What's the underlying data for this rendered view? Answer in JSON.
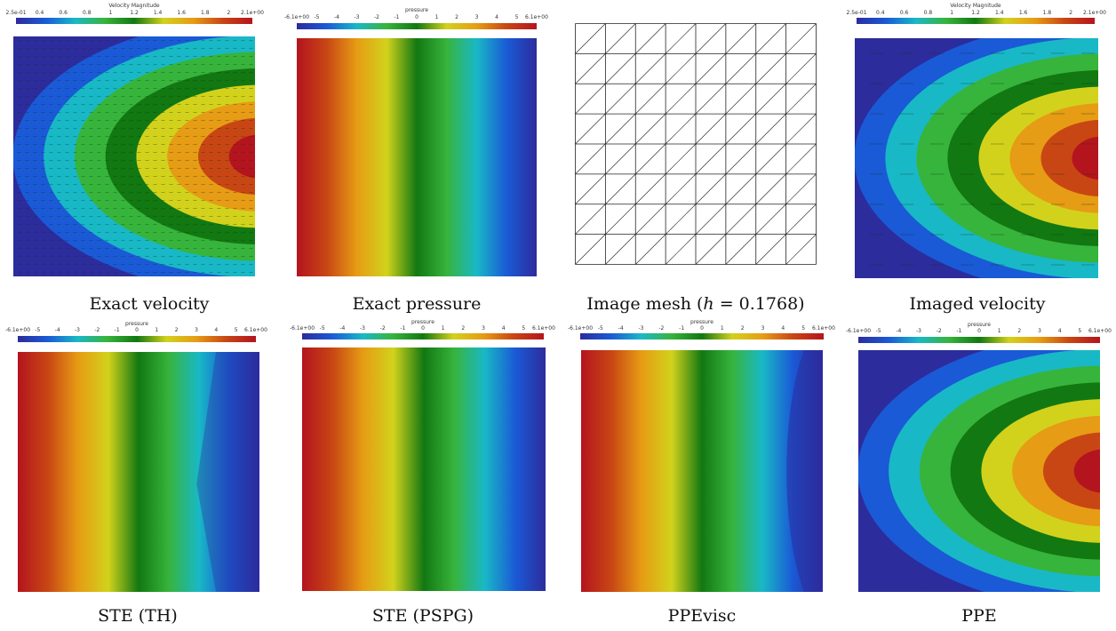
{
  "colormap": [
    "#2c2c9c",
    "#1a5ad6",
    "#19b8c6",
    "#37b43c",
    "#127812",
    "#d2d21c",
    "#e69c14",
    "#c84614",
    "#b4141e"
  ],
  "panels": [
    {
      "id": "exact-velocity",
      "caption": "Exact velocity",
      "colorbar": {
        "title": "Velocity Magnitude",
        "ticks": [
          "2.5e-01",
          "0.4",
          "0.6",
          "0.8",
          "1",
          "1.2",
          "1.4",
          "1.6",
          "1.8",
          "2",
          "2.1e+00"
        ]
      },
      "field": {
        "pattern": "parabolic",
        "vectors": "dense"
      }
    },
    {
      "id": "exact-pressure",
      "caption": "Exact pressure",
      "colorbar": {
        "title": "pressure",
        "ticks": [
          "-6.1e+00",
          "-5",
          "-4",
          "-3",
          "-2",
          "-1",
          "0",
          "1",
          "2",
          "3",
          "4",
          "5",
          "6.1e+00"
        ]
      },
      "field": {
        "pattern": "linear"
      }
    },
    {
      "id": "image-mesh",
      "caption_prefix": "Image mesh (",
      "caption_math": "h",
      "caption_suffix": " = 0.1768)",
      "mesh": {
        "divisions": 8
      }
    },
    {
      "id": "imaged-velocity",
      "caption": "Imaged velocity",
      "colorbar": {
        "title": "Velocity Magnitude",
        "ticks": [
          "2.5e-01",
          "0.4",
          "0.6",
          "0.8",
          "1",
          "1.2",
          "1.4",
          "1.6",
          "1.8",
          "2",
          "2.1e+00"
        ]
      },
      "field": {
        "pattern": "parabolic",
        "vectors": "sparse"
      }
    },
    {
      "id": "ste-th",
      "caption": "STE (TH)",
      "colorbar": {
        "title": "pressure",
        "ticks": [
          "-6.1e+00",
          "-5",
          "-4",
          "-3",
          "-2",
          "-1",
          "0",
          "1",
          "2",
          "3",
          "4",
          "5",
          "6.1e+00"
        ]
      },
      "field": {
        "pattern": "linear-kinked"
      }
    },
    {
      "id": "ste-pspg",
      "caption": "STE (PSPG)",
      "colorbar": {
        "title": "pressure",
        "ticks": [
          "-6.1e+00",
          "-5",
          "-4",
          "-3",
          "-2",
          "-1",
          "0",
          "1",
          "2",
          "3",
          "4",
          "5",
          "6.1e+00"
        ]
      },
      "field": {
        "pattern": "linear"
      }
    },
    {
      "id": "ppevisc",
      "caption": "PPEvisc",
      "colorbar": {
        "title": "pressure",
        "ticks": [
          "-6.1e+00",
          "-5",
          "-4",
          "-3",
          "-2",
          "-1",
          "0",
          "1",
          "2",
          "3",
          "4",
          "5",
          "6.1e+00"
        ]
      },
      "field": {
        "pattern": "linear-curved"
      }
    },
    {
      "id": "ppe",
      "caption": "PPE",
      "colorbar": {
        "title": "pressure",
        "ticks": [
          "-6.1e+00",
          "-5",
          "-4",
          "-3",
          "-2",
          "-1",
          "0",
          "1",
          "2",
          "3",
          "4",
          "5",
          "6.1e+00"
        ]
      },
      "field": {
        "pattern": "radial-reversed"
      }
    }
  ]
}
